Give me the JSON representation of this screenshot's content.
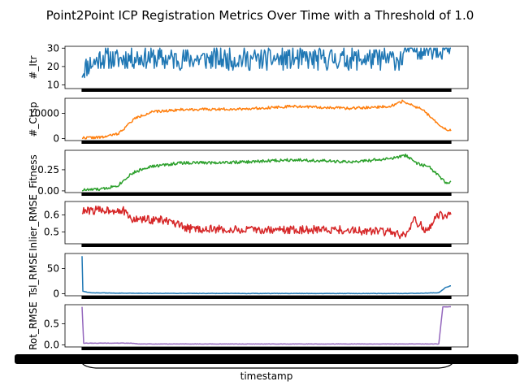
{
  "chart_data": {
    "type": "line",
    "title": "Point2Point ICP Registration Metrics Over Time with a Threshold of 1.0",
    "xlabel": "timestamp",
    "n_points": 456,
    "grid": false,
    "panels": [
      {
        "ylabel": "#_Itr",
        "color": "#1f77b4",
        "ylim": [
          8,
          31
        ],
        "yticks": [
          10,
          20,
          30
        ],
        "ytick_labels": [
          "10",
          "20",
          "30"
        ],
        "profile": [
          [
            0,
            17
          ],
          [
            5,
            20
          ],
          [
            25,
            25
          ],
          [
            40,
            24
          ],
          [
            70,
            25
          ],
          [
            100,
            24
          ],
          [
            200,
            24
          ],
          [
            300,
            24
          ],
          [
            395,
            24
          ],
          [
            400,
            30
          ],
          [
            455,
            30
          ]
        ],
        "noise": 6,
        "noise_seed": 11
      },
      {
        "ylabel": "#_Crsp",
        "color": "#ff7f0e",
        "ylim": [
          -800,
          16000
        ],
        "yticks": [
          0,
          10000
        ],
        "ytick_labels": [
          "0",
          "10000"
        ],
        "profile": [
          [
            0,
            300
          ],
          [
            25,
            500
          ],
          [
            45,
            2000
          ],
          [
            65,
            8000
          ],
          [
            85,
            10500
          ],
          [
            120,
            11500
          ],
          [
            200,
            11800
          ],
          [
            260,
            12800
          ],
          [
            330,
            12000
          ],
          [
            380,
            12800
          ],
          [
            395,
            14800
          ],
          [
            405,
            13500
          ],
          [
            420,
            11500
          ],
          [
            445,
            4000
          ],
          [
            455,
            3200
          ]
        ],
        "noise": 500,
        "noise_seed": 22
      },
      {
        "ylabel": "Fitness",
        "color": "#2ca02c",
        "ylim": [
          -0.02,
          0.48
        ],
        "yticks": [
          0.0,
          0.25
        ],
        "ytick_labels": [
          "0.00",
          "0.25"
        ],
        "profile": [
          [
            0,
            0.01
          ],
          [
            25,
            0.02
          ],
          [
            45,
            0.07
          ],
          [
            60,
            0.2
          ],
          [
            80,
            0.28
          ],
          [
            120,
            0.33
          ],
          [
            200,
            0.34
          ],
          [
            260,
            0.37
          ],
          [
            330,
            0.34
          ],
          [
            380,
            0.38
          ],
          [
            400,
            0.42
          ],
          [
            410,
            0.34
          ],
          [
            430,
            0.27
          ],
          [
            450,
            0.08
          ],
          [
            455,
            0.1
          ]
        ],
        "noise": 0.018,
        "noise_seed": 33
      },
      {
        "ylabel": "Inlier_RMSE",
        "color": "#d62728",
        "ylim": [
          0.43,
          0.68
        ],
        "yticks": [
          0.5,
          0.6
        ],
        "ytick_labels": [
          "0.5",
          "0.6"
        ],
        "profile": [
          [
            0,
            0.62
          ],
          [
            20,
            0.63
          ],
          [
            50,
            0.63
          ],
          [
            60,
            0.575
          ],
          [
            100,
            0.57
          ],
          [
            130,
            0.52
          ],
          [
            200,
            0.51
          ],
          [
            300,
            0.515
          ],
          [
            380,
            0.5
          ],
          [
            400,
            0.47
          ],
          [
            410,
            0.57
          ],
          [
            425,
            0.51
          ],
          [
            440,
            0.6
          ],
          [
            455,
            0.6
          ]
        ],
        "noise": 0.025,
        "noise_seed": 44
      },
      {
        "ylabel": "Tsl_RMSE",
        "color": "#1f77b4",
        "ylim": [
          -4,
          80
        ],
        "yticks": [
          0,
          50
        ],
        "ytick_labels": [
          "0",
          "50"
        ],
        "profile": [
          [
            0,
            75
          ],
          [
            1,
            5
          ],
          [
            10,
            2
          ],
          [
            50,
            1
          ],
          [
            200,
            0.5
          ],
          [
            400,
            0.5
          ],
          [
            440,
            2
          ],
          [
            448,
            12
          ],
          [
            455,
            16
          ]
        ],
        "noise": 0.4,
        "noise_seed": 55
      },
      {
        "ylabel": "Rot_RMSE",
        "color": "#9467bd",
        "ylim": [
          -0.05,
          0.95
        ],
        "yticks": [
          0.0,
          0.5
        ],
        "ytick_labels": [
          "0.0",
          "0.5"
        ],
        "profile": [
          [
            0,
            0.9
          ],
          [
            2,
            0.04
          ],
          [
            60,
            0.04
          ],
          [
            70,
            0.02
          ],
          [
            440,
            0.02
          ],
          [
            445,
            0.9
          ],
          [
            455,
            0.9
          ]
        ],
        "noise": 0.004,
        "noise_seed": 66
      }
    ]
  }
}
